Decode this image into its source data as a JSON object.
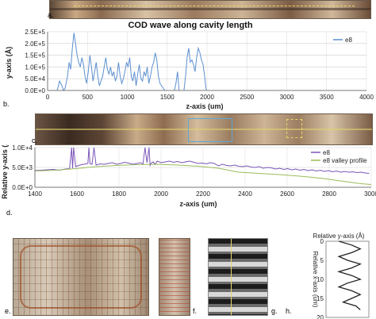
{
  "panel_labels": {
    "a": "a.",
    "b": "b.",
    "c": "c.",
    "d": "d.",
    "e": "e.",
    "f": "f.",
    "g": "g.",
    "h": "h."
  },
  "colors": {
    "series": "#5b8fd0",
    "e8_purple": "#7a55b8",
    "valley_green": "#9bbb59",
    "grid": "#cfcfcf",
    "image_dark": "#4a3a2e",
    "image_copper": "#b4643a"
  },
  "chart_data": [
    {
      "type": "line",
      "title": "COD wave along cavity length",
      "xlabel": "z-axis (um)",
      "ylabel": "y-axis (Å)",
      "xlim": [
        0,
        4000
      ],
      "ylim": [
        0,
        250000
      ],
      "x_ticks": [
        "0",
        "500",
        "1000",
        "1500",
        "2000",
        "2500",
        "3000",
        "3500",
        "4000"
      ],
      "y_ticks": [
        "0.0E+0",
        "5.0E+4",
        "1.0E+5",
        "1.5E+5",
        "2.0E+5",
        "2.5E+5"
      ],
      "grid": true,
      "legend": "top-right",
      "series": [
        {
          "name": "e8",
          "color": "#5b8fd0",
          "x": [
            0,
            120,
            150,
            180,
            200,
            220,
            250,
            270,
            290,
            310,
            330,
            350,
            370,
            390,
            410,
            430,
            450,
            470,
            490,
            510,
            530,
            550,
            570,
            590,
            610,
            630,
            650,
            670,
            690,
            710,
            730,
            750,
            770,
            790,
            810,
            830,
            850,
            870,
            890,
            910,
            930,
            950,
            970,
            990,
            1010,
            1030,
            1050,
            1070,
            1090,
            1110,
            1130,
            1150,
            1170,
            1190,
            1210,
            1230,
            1250,
            1270,
            1290,
            1310,
            1330,
            1350,
            1370,
            1390,
            1410,
            1430,
            1450,
            1470,
            1490,
            1510,
            1530,
            1550,
            1570,
            1590,
            1610,
            1630,
            1650,
            1670,
            1690,
            1710,
            1730,
            1750,
            1770,
            1790,
            1810,
            1830,
            1850,
            1870,
            1890,
            1910,
            1930,
            1950,
            1970,
            1990,
            2010,
            2030,
            2050,
            3000,
            4000
          ],
          "y": [
            0,
            0,
            40000,
            20000,
            0,
            10000,
            60000,
            120000,
            90000,
            180000,
            245000,
            200000,
            150000,
            120000,
            100000,
            140000,
            110000,
            60000,
            30000,
            80000,
            150000,
            100000,
            40000,
            80000,
            120000,
            60000,
            20000,
            40000,
            60000,
            100000,
            140000,
            90000,
            70000,
            100000,
            60000,
            80000,
            40000,
            60000,
            120000,
            60000,
            30000,
            50000,
            80000,
            120000,
            100000,
            140000,
            60000,
            40000,
            80000,
            20000,
            70000,
            110000,
            50000,
            40000,
            80000,
            60000,
            100000,
            30000,
            60000,
            100000,
            120000,
            160000,
            130000,
            60000,
            30000,
            20000,
            10000,
            0,
            0,
            0,
            0,
            0,
            0,
            0,
            30000,
            80000,
            0,
            0,
            0,
            0,
            60000,
            140000,
            180000,
            120000,
            130000,
            110000,
            80000,
            140000,
            180000,
            160000,
            130000,
            110000,
            60000,
            0,
            0,
            0,
            0,
            0,
            0
          ]
        }
      ]
    },
    {
      "type": "line",
      "title": "",
      "xlabel": "z-axis (um)",
      "ylabel": "Relative y-axis (Å)",
      "xlim": [
        1400,
        3050
      ],
      "ylim": [
        0,
        10000
      ],
      "x_ticks": [
        "1400",
        "1600",
        "1800",
        "2000",
        "2200",
        "2400",
        "2600",
        "2800",
        "3000"
      ],
      "y_ticks": [
        "0.0E+0",
        "5.0E+3",
        "1.0E+4"
      ],
      "grid": true,
      "legend": "top-right",
      "series": [
        {
          "name": "e8",
          "color": "#7a55b8",
          "x": [
            1400,
            1430,
            1460,
            1490,
            1520,
            1550,
            1570,
            1580,
            1585,
            1590,
            1600,
            1620,
            1640,
            1660,
            1665,
            1670,
            1680,
            1690,
            1700,
            1720,
            1740,
            1760,
            1780,
            1800,
            1820,
            1840,
            1860,
            1880,
            1900,
            1920,
            1930,
            1940,
            1950,
            1960,
            1965,
            1970,
            1980,
            1990,
            2000,
            2020,
            2040,
            2060,
            2080,
            2100,
            2120,
            2140,
            2160,
            2180,
            2200,
            2220,
            2240,
            2260,
            2280,
            2300,
            2320,
            2340,
            2360,
            2380,
            2400,
            2420,
            2440,
            2460,
            2480,
            2500,
            2520,
            2540,
            2560,
            2580,
            2600,
            2620,
            2640,
            2660,
            2680,
            2700,
            2720,
            2740,
            2760,
            2780,
            2800,
            2820,
            2840,
            2860,
            2880,
            2900,
            2920,
            2940,
            2960,
            2980,
            3000,
            3020,
            3040
          ],
          "y": [
            4200,
            4300,
            4400,
            4500,
            4300,
            4600,
            4700,
            10000,
            4800,
            10000,
            5200,
            5600,
            5800,
            6000,
            10000,
            6000,
            5800,
            10000,
            5600,
            5900,
            5800,
            6000,
            6200,
            5800,
            6000,
            6300,
            6100,
            5800,
            6000,
            6200,
            5800,
            10000,
            6200,
            10000,
            5500,
            6000,
            6400,
            5800,
            6600,
            6200,
            6400,
            6600,
            6300,
            6500,
            6200,
            6400,
            6600,
            6300,
            6000,
            6100,
            5900,
            6200,
            6000,
            5400,
            5800,
            5500,
            5400,
            5600,
            5300,
            5200,
            5400,
            5100,
            5000,
            5200,
            4800,
            5000,
            4900,
            4600,
            4800,
            4500,
            4700,
            4400,
            4600,
            4300,
            4500,
            4200,
            4400,
            4100,
            4300,
            4000,
            4200,
            3900,
            4100,
            3800,
            4000,
            3800,
            3900,
            3700,
            3800,
            3600,
            3500
          ]
        },
        {
          "name": "e8 valley profile",
          "color": "#9bbb59",
          "x": [
            1400,
            1500,
            1600,
            1700,
            1800,
            1900,
            2000,
            2100,
            2200,
            2300,
            2400,
            2500,
            2600,
            2700,
            2800,
            2900,
            3000,
            3050
          ],
          "y": [
            4100,
            4300,
            4700,
            5200,
            5500,
            5700,
            5800,
            5600,
            5300,
            4800,
            3800,
            3500,
            3200,
            2800,
            2300,
            1600,
            900,
            700
          ]
        }
      ]
    },
    {
      "type": "line",
      "title": "",
      "xlabel": "",
      "ylabel": "",
      "y_axis_title_top": "Relative y-axis (Å)",
      "y_axis_title_side": "Relative x-axis (um)",
      "ylim": [
        0,
        20
      ],
      "y_ticks": [
        "0",
        "5",
        "10",
        "15",
        "20"
      ],
      "series": [
        {
          "name": "",
          "color": "#222222",
          "x": [
            3,
            6,
            8,
            6,
            3,
            5,
            8,
            6,
            3,
            6,
            8,
            5,
            3,
            6,
            8,
            6,
            4,
            7,
            8
          ],
          "y": [
            0,
            1,
            2,
            3,
            4,
            5,
            6,
            7,
            8,
            9,
            10,
            11,
            12,
            13,
            14,
            15,
            16,
            17,
            18
          ]
        }
      ]
    }
  ]
}
